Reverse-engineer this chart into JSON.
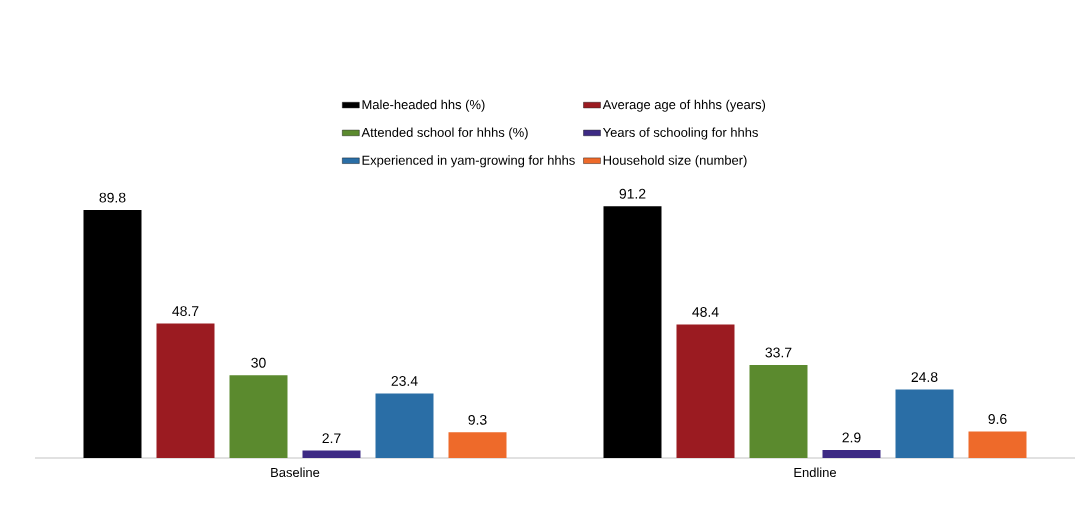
{
  "chart_data": {
    "type": "bar",
    "categories": [
      "Baseline",
      "Endline"
    ],
    "series": [
      {
        "name": "Male-headed hhs (%)",
        "color": "#000000",
        "values": [
          89.8,
          91.2
        ]
      },
      {
        "name": "Average age of hhhs (years)",
        "color": "#9b1b21",
        "values": [
          48.7,
          48.4
        ]
      },
      {
        "name": "Attended school for hhhs (%)",
        "color": "#5b8a2e",
        "values": [
          30,
          33.7
        ]
      },
      {
        "name": "Years of schooling for hhhs",
        "color": "#3d2a84",
        "values": [
          2.7,
          2.9
        ]
      },
      {
        "name": "Experienced in yam-growing for hhhs",
        "color": "#2a6ea6",
        "values": [
          23.4,
          24.8
        ]
      },
      {
        "name": "Household size (number)",
        "color": "#ee6a2a",
        "values": [
          9.3,
          9.6
        ]
      }
    ],
    "data_labels": true,
    "legend": "top"
  }
}
